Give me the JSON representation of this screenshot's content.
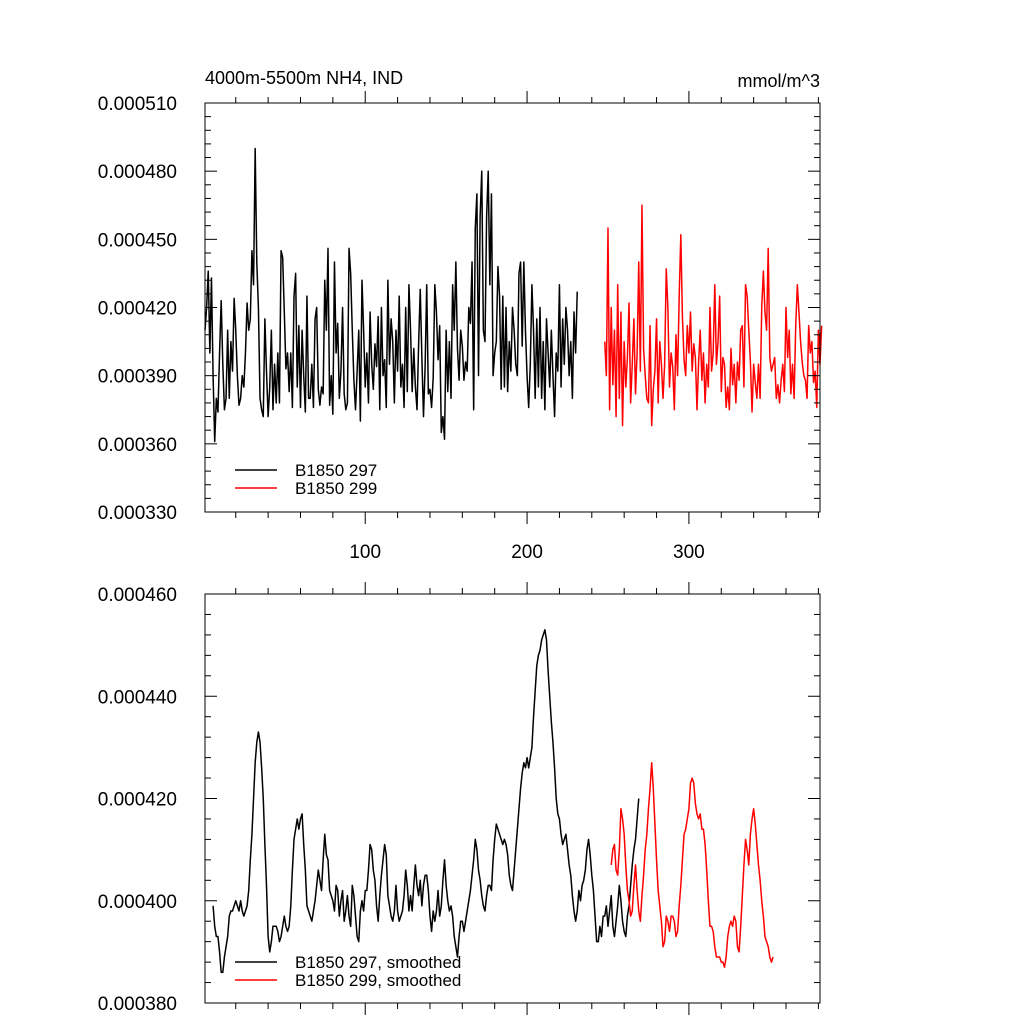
{
  "chart_data": [
    {
      "type": "line",
      "title_left": "4000m-5500m NH4, IND",
      "title_right": "mmol/m^3",
      "xlim": [
        1,
        381
      ],
      "ylim": [
        0.00033,
        0.00051
      ],
      "x_ticks": [
        100,
        200,
        300
      ],
      "x_tick_labels": [
        "100",
        "200",
        "300"
      ],
      "y_ticks": [
        0.00033,
        0.00036,
        0.00039,
        0.00042,
        0.00045,
        0.00048,
        0.00051
      ],
      "y_tick_labels": [
        "0.000330",
        "0.000360",
        "0.000390",
        "0.000420",
        "0.000450",
        "0.000480",
        "0.000510"
      ],
      "legend": [
        "B1850 297",
        "B1850 299"
      ],
      "series": [
        {
          "name": "B1850 297",
          "color": "#000000",
          "x_start": 1,
          "values": [
            0.00041,
            0.00042,
            0.000436,
            0.0004,
            0.000433,
            0.00039,
            0.000361,
            0.00038,
            0.000374,
            0.0004,
            0.000423,
            0.000395,
            0.000375,
            0.00038,
            0.00041,
            0.00038,
            0.000405,
            0.000392,
            0.000424,
            0.00041,
            0.00039,
            0.000377,
            0.00038,
            0.00039,
            0.000385,
            0.0004,
            0.000422,
            0.00041,
            0.000415,
            0.000445,
            0.00043,
            0.00049,
            0.00044,
            0.00042,
            0.00038,
            0.000375,
            0.000372,
            0.000415,
            0.000392,
            0.000372,
            0.000385,
            0.00041,
            0.000375,
            0.000395,
            0.000378,
            0.0004,
            0.000378,
            0.000445,
            0.000442,
            0.000418,
            0.000393,
            0.0004,
            0.000383,
            0.0004,
            0.000376,
            0.000425,
            0.000435,
            0.000385,
            0.000412,
            0.000376,
            0.00041,
            0.00039,
            0.000374,
            0.000425,
            0.00038,
            0.00038,
            0.000395,
            0.000376,
            0.000415,
            0.00042,
            0.000384,
            0.000377,
            0.000385,
            0.000382,
            0.000432,
            0.00041,
            0.000446,
            0.000377,
            0.00039,
            0.000373,
            0.00044,
            0.0004,
            0.000413,
            0.00038,
            0.000392,
            0.00042,
            0.000382,
            0.000375,
            0.000378,
            0.000446,
            0.000435,
            0.00041,
            0.000388,
            0.000375,
            0.000392,
            0.00041,
            0.00037,
            0.000432,
            0.00041,
            0.000385,
            0.0004,
            0.000378,
            0.000418,
            0.000395,
            0.000384,
            0.000404,
            0.000394,
            0.000416,
            0.000375,
            0.00042,
            0.00039,
            0.000397,
            0.000376,
            0.000432,
            0.000395,
            0.000415,
            0.000405,
            0.000378,
            0.00041,
            0.000392,
            0.000425,
            0.000385,
            0.000395,
            0.000376,
            0.00042,
            0.000383,
            0.00043,
            0.00041,
            0.000383,
            0.000402,
            0.000385,
            0.000375,
            0.000404,
            0.000428,
            0.000398,
            0.000372,
            0.000394,
            0.00043,
            0.000382,
            0.000384,
            0.000376,
            0.000389,
            0.00043,
            0.000418,
            0.000397,
            0.000412,
            0.000365,
            0.000372,
            0.000362,
            0.00041,
            0.000383,
            0.000405,
            0.00038,
            0.00043,
            0.00041,
            0.00044,
            0.000402,
            0.000388,
            0.00041,
            0.000403,
            0.000388,
            0.000396,
            0.000392,
            0.00042,
            0.000413,
            0.00044,
            0.000375,
            0.000455,
            0.00047,
            0.00039,
            0.00046,
            0.00048,
            0.00041,
            0.000405,
            0.00046,
            0.00048,
            0.00043,
            0.00047,
            0.00039,
            0.0004,
            0.000405,
            0.000438,
            0.000425,
            0.000384,
            0.000425,
            0.000385,
            0.00042,
            0.000383,
            0.000405,
            0.000392,
            0.00042,
            0.00041,
            0.000395,
            0.00039,
            0.000435,
            0.00044,
            0.000403,
            0.00044,
            0.00041,
            0.00039,
            0.000376,
            0.000395,
            0.00043,
            0.00041,
            0.00038,
            0.000415,
            0.000385,
            0.00042,
            0.00038,
            0.000405,
            0.000375,
            0.000415,
            0.0004,
            0.000385,
            0.00041,
            0.00039,
            0.000372,
            0.0004,
            0.000392,
            0.00043,
            0.000385,
            0.000415,
            0.000395,
            0.00042,
            0.00041,
            0.00039,
            0.000405,
            0.00038,
            0.000418,
            0.0004,
            0.000427
          ]
        },
        {
          "name": "B1850 299",
          "color": "#ff0000",
          "x_start": 248,
          "values": [
            0.000405,
            0.00039,
            0.000455,
            0.000375,
            0.00042,
            0.000386,
            0.00041,
            0.000372,
            0.00043,
            0.00038,
            0.000418,
            0.000368,
            0.000405,
            0.000385,
            0.000398,
            0.000422,
            0.000378,
            0.000395,
            0.000415,
            0.000382,
            0.0004,
            0.00044,
            0.000392,
            0.000465,
            0.000402,
            0.00039,
            0.00038,
            0.000378,
            0.000412,
            0.000368,
            0.000384,
            0.000392,
            0.000415,
            0.000378,
            0.000405,
            0.000395,
            0.00038,
            0.000395,
            0.000437,
            0.00042,
            0.000385,
            0.0004,
            0.000394,
            0.000375,
            0.000408,
            0.00039,
            0.000425,
            0.000452,
            0.000416,
            0.000397,
            0.00039,
            0.000412,
            0.0004,
            0.000418,
            0.000392,
            0.000404,
            0.000398,
            0.000375,
            0.000396,
            0.00041,
            0.000388,
            0.0004,
            0.000378,
            0.000395,
            0.000385,
            0.00042,
            0.000392,
            0.0004,
            0.00043,
            0.000395,
            0.000405,
            0.000425,
            0.000383,
            0.000398,
            0.000395,
            0.000376,
            0.000385,
            0.000375,
            0.000402,
            0.000386,
            0.000395,
            0.000378,
            0.000396,
            0.000388,
            0.00041,
            0.000412,
            0.000385,
            0.00043,
            0.000425,
            0.00041,
            0.000396,
            0.000374,
            0.000395,
            0.000387,
            0.00038,
            0.000395,
            0.00038,
            0.00042,
            0.000436,
            0.000418,
            0.00041,
            0.000446,
            0.000398,
            0.000392,
            0.000395,
            0.000398,
            0.00038,
            0.000386,
            0.000378,
            0.000388,
            0.000395,
            0.000383,
            0.00042,
            0.000398,
            0.00041,
            0.000382,
            0.000395,
            0.00038,
            0.000412,
            0.00043,
            0.000418,
            0.000405,
            0.000396,
            0.00039,
            0.000388,
            0.00038,
            0.000412,
            0.0004,
            0.000405,
            0.000387,
            0.000392,
            0.000376,
            0.00041,
            0.000395,
            0.000412
          ]
        }
      ]
    },
    {
      "type": "line",
      "xlim": [
        1,
        381
      ],
      "ylim": [
        0.00038,
        0.00046
      ],
      "x_ticks": [
        100,
        200,
        300
      ],
      "y_ticks": [
        0.00038,
        0.0004,
        0.00042,
        0.00044,
        0.00046
      ],
      "y_tick_labels": [
        "0.000380",
        "0.000400",
        "0.000420",
        "0.000440",
        "0.000460"
      ],
      "legend": [
        "B1850 297, smoothed",
        "B1850 299, smoothed"
      ],
      "series": [
        {
          "name": "B1850 297, smoothed",
          "color": "#000000",
          "x_start": 6,
          "values": [
            0.000399,
            0.000395,
            0.000393,
            0.000393,
            0.00039,
            0.000386,
            0.000386,
            0.000389,
            0.000391,
            0.000393,
            0.000397,
            0.000398,
            0.000398,
            0.000399,
            0.0004,
            0.000399,
            0.000398,
            0.0004,
            0.000398,
            0.000397,
            0.000398,
            0.000399,
            0.000402,
            0.000408,
            0.000413,
            0.00042,
            0.000427,
            0.000431,
            0.000433,
            0.000431,
            0.000426,
            0.00042,
            0.000411,
            0.000403,
            0.000393,
            0.00039,
            0.000392,
            0.000395,
            0.000395,
            0.000395,
            0.000394,
            0.000392,
            0.000393,
            0.000395,
            0.000397,
            0.000395,
            0.000394,
            0.000395,
            0.000399,
            0.000406,
            0.000412,
            0.000414,
            0.000416,
            0.000414,
            0.000416,
            0.000417,
            0.000411,
            0.000406,
            0.000399,
            0.000398,
            0.000397,
            0.000396,
            0.000398,
            0.0004,
            0.000403,
            0.000406,
            0.000404,
            0.000402,
            0.000408,
            0.000413,
            0.000409,
            0.000408,
            0.000402,
            0.000401,
            0.0004,
            0.000398,
            0.000403,
            0.000402,
            0.000397,
            0.0004,
            0.000402,
            0.000396,
            0.000398,
            0.000401,
            0.000397,
            0.000395,
            0.000403,
            0.000401,
            0.000397,
            0.000393,
            0.000392,
            0.000398,
            0.0004,
            0.000398,
            0.000402,
            0.000402,
            0.000406,
            0.000411,
            0.00041,
            0.000406,
            0.000404,
            0.000399,
            0.000396,
            0.000401,
            0.000405,
            0.000408,
            0.000411,
            0.000409,
            0.000401,
            0.000399,
            0.000397,
            0.000396,
            0.000398,
            0.000403,
            0.000398,
            0.000396,
            0.000397,
            0.000398,
            0.000401,
            0.000406,
            0.000403,
            0.000398,
            0.000401,
            0.000398,
            0.000403,
            0.000407,
            0.000403,
            0.000401,
            0.000404,
            0.000399,
            0.000403,
            0.000405,
            0.000405,
            0.000402,
            0.000397,
            0.000394,
            0.000398,
            0.000396,
            0.000398,
            0.000402,
            0.000397,
            0.000399,
            0.000404,
            0.000408,
            0.000403,
            0.0004,
            0.000398,
            0.000399,
            0.000397,
            0.000393,
            0.000391,
            0.000389,
            0.000393,
            0.000396,
            0.000396,
            0.000394,
            0.000396,
            0.000398,
            0.0004,
            0.000402,
            0.000405,
            0.000408,
            0.000412,
            0.00041,
            0.000406,
            0.000404,
            0.000401,
            0.000399,
            0.000398,
            0.000401,
            0.000403,
            0.000403,
            0.000402,
            0.000408,
            0.000412,
            0.000415,
            0.000414,
            0.000413,
            0.000412,
            0.000411,
            0.000412,
            0.000411,
            0.000409,
            0.000405,
            0.000403,
            0.000402,
            0.000406,
            0.00041,
            0.000414,
            0.000418,
            0.000422,
            0.000425,
            0.000427,
            0.000426,
            0.000428,
            0.000426,
            0.000428,
            0.00043,
            0.000436,
            0.000441,
            0.000446,
            0.000448,
            0.000449,
            0.000451,
            0.000452,
            0.000453,
            0.000451,
            0.000445,
            0.00044,
            0.000435,
            0.000431,
            0.000426,
            0.00042,
            0.000417,
            0.000416,
            0.000413,
            0.000411,
            0.000412,
            0.000413,
            0.00041,
            0.000407,
            0.000405,
            0.000401,
            0.000398,
            0.000396,
            0.000398,
            0.000402,
            0.0004,
            0.000403,
            0.000404,
            0.000406,
            0.00041,
            0.000412,
            0.000409,
            0.000405,
            0.000402,
            0.000397,
            0.000392,
            0.000392,
            0.000395,
            0.000393,
            0.000397,
            0.000397,
            0.000399,
            0.000395,
            0.000398,
            0.000401,
            0.000395,
            0.000393,
            0.000396,
            0.000399,
            0.000403,
            0.0004,
            0.000396,
            0.000394,
            0.000393,
            0.000397,
            0.000399,
            0.000403,
            0.000407,
            0.00041,
            0.000412,
            0.000416,
            0.00042
          ]
        },
        {
          "name": "B1850 299, smoothed",
          "color": "#ff0000",
          "x_start": 252,
          "values": [
            0.000407,
            0.00041,
            0.000411,
            0.000406,
            0.000405,
            0.00041,
            0.000418,
            0.000416,
            0.000413,
            0.000407,
            0.000402,
            0.0004,
            0.000397,
            0.000398,
            0.000403,
            0.000407,
            0.000402,
            0.000398,
            0.000396,
            0.000401,
            0.000405,
            0.00041,
            0.000413,
            0.000418,
            0.000422,
            0.000427,
            0.000422,
            0.000415,
            0.000408,
            0.000402,
            0.000399,
            0.000396,
            0.000391,
            0.000392,
            0.000397,
            0.000396,
            0.000394,
            0.000397,
            0.000397,
            0.000396,
            0.000393,
            0.000394,
            0.000399,
            0.000403,
            0.000408,
            0.000413,
            0.000414,
            0.000416,
            0.000418,
            0.000423,
            0.000424,
            0.000423,
            0.000419,
            0.000417,
            0.000416,
            0.000417,
            0.000414,
            0.000414,
            0.000411,
            0.000406,
            0.0004,
            0.000395,
            0.000395,
            0.000394,
            0.000391,
            0.000389,
            0.000389,
            0.000389,
            0.000388,
            0.000388,
            0.000387,
            0.000389,
            0.000393,
            0.000395,
            0.000396,
            0.000395,
            0.000397,
            0.000396,
            0.000391,
            0.00039,
            0.000395,
            0.000401,
            0.000407,
            0.000412,
            0.00041,
            0.000407,
            0.000413,
            0.000416,
            0.000418,
            0.000415,
            0.000411,
            0.000407,
            0.000404,
            0.0004,
            0.000397,
            0.000393,
            0.000392,
            0.000391,
            0.000389,
            0.000388,
            0.000389
          ]
        }
      ]
    }
  ]
}
